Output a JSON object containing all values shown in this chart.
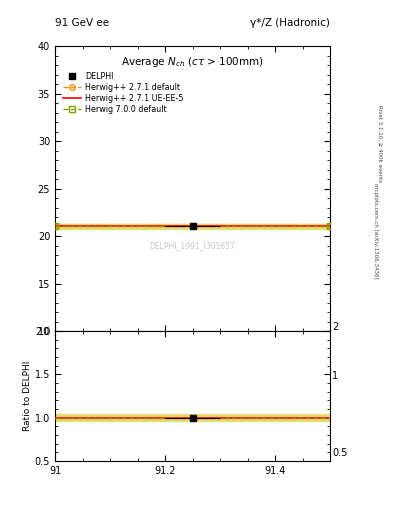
{
  "title_top_left": "91 GeV ee",
  "title_top_right": "γ*/Z (Hadronic)",
  "plot_title": "Average $N_{ch}$ ($c\\tau$ > 100mm)",
  "ylabel_ratio": "Ratio to DELPHI",
  "xlim": [
    91.0,
    91.5
  ],
  "ylim_main": [
    10,
    40
  ],
  "ylim_ratio": [
    0.5,
    2.0
  ],
  "yticks_main": [
    10,
    15,
    20,
    25,
    30,
    35,
    40
  ],
  "xtick_labels": [
    "91",
    "91.2",
    "91.4"
  ],
  "xtick_vals": [
    91.0,
    91.2,
    91.4
  ],
  "data_x": 91.25,
  "data_y": 21.05,
  "data_yerr": 0.12,
  "data_xerr": 0.05,
  "line_y": 21.05,
  "hw271_band": 0.18,
  "hw700_band": 0.25,
  "color_data": "#000000",
  "color_hw271_default": "#ff8c00",
  "color_hw271_ueee5": "#ff0000",
  "color_hw700_default": "#80a000",
  "color_hw700_fill": "#ccee44",
  "color_hw271_fill": "#ffcc88",
  "watermark": "DELPHI_1991_I301657",
  "right_label1": "Rivet 3.1.10, ≥ 400k events",
  "right_label2": "mcplots.cern.ch [arXiv:1306.3436]",
  "ratio_line_y": 1.0,
  "ratio_hw271_band": 0.025,
  "ratio_hw700_band": 0.04
}
